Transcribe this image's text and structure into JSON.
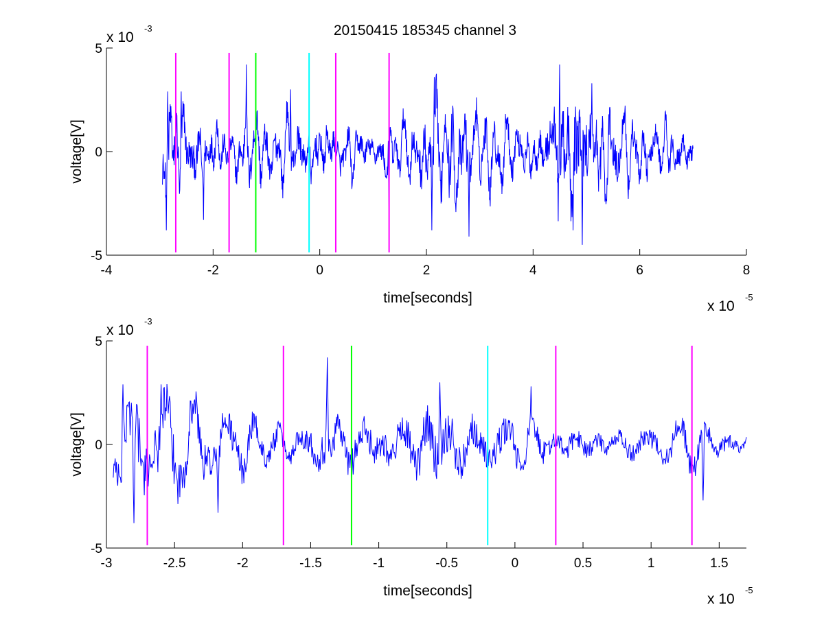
{
  "title": "20150415 185345 channel 3",
  "colors": {
    "signal": "#0000ff",
    "magenta": "#ff00ff",
    "green": "#00ff00",
    "cyan": "#00ffff",
    "axis": "#000000"
  },
  "chart_data": [
    {
      "type": "line",
      "xlabel": "time[seconds]",
      "ylabel": "voltage[V]",
      "x_scale_text": "x 10",
      "x_scale_exp": "-5",
      "y_scale_text": "x 10",
      "y_scale_exp": "-3",
      "x_scale": 1e-05,
      "y_scale": 0.001,
      "xlim": [
        -4,
        8
      ],
      "ylim": [
        -5,
        5
      ],
      "xticks": [
        {
          "value": -4,
          "label": "-4"
        },
        {
          "value": -2,
          "label": "-2"
        },
        {
          "value": 0,
          "label": "0"
        },
        {
          "value": 2,
          "label": "2"
        },
        {
          "value": 4,
          "label": "4"
        },
        {
          "value": 6,
          "label": "6"
        },
        {
          "value": 8,
          "label": "8"
        }
      ],
      "yticks": [
        {
          "value": -5,
          "label": "-5"
        },
        {
          "value": 0,
          "label": "0"
        },
        {
          "value": 5,
          "label": "5"
        }
      ],
      "signal_x_range": [
        -2.95,
        7.0
      ],
      "markers": [
        {
          "x": -2.7,
          "color": "magenta"
        },
        {
          "x": -1.7,
          "color": "magenta"
        },
        {
          "x": -1.2,
          "color": "green"
        },
        {
          "x": -0.2,
          "color": "cyan"
        },
        {
          "x": 0.3,
          "color": "magenta"
        },
        {
          "x": 1.3,
          "color": "magenta"
        }
      ],
      "envelope": [
        {
          "x": -2.95,
          "a": 0.8
        },
        {
          "x": -2.85,
          "a": 2.7
        },
        {
          "x": -2.7,
          "a": 2.4
        },
        {
          "x": -2.5,
          "a": 1.6
        },
        {
          "x": -2.2,
          "a": 1.8
        },
        {
          "x": -2.0,
          "a": 1.4
        },
        {
          "x": -1.6,
          "a": 1.1
        },
        {
          "x": -1.4,
          "a": 1.7
        },
        {
          "x": -1.2,
          "a": 1.7
        },
        {
          "x": -0.6,
          "a": 1.3
        },
        {
          "x": -0.2,
          "a": 1.5
        },
        {
          "x": 0.5,
          "a": 1.2
        },
        {
          "x": 1.0,
          "a": 0.9
        },
        {
          "x": 1.4,
          "a": 1.3
        },
        {
          "x": 1.8,
          "a": 1.7
        },
        {
          "x": 2.3,
          "a": 2.7
        },
        {
          "x": 2.8,
          "a": 2.2
        },
        {
          "x": 3.3,
          "a": 1.5
        },
        {
          "x": 3.8,
          "a": 1.3
        },
        {
          "x": 4.2,
          "a": 1.2
        },
        {
          "x": 4.5,
          "a": 3.3
        },
        {
          "x": 4.9,
          "a": 3.6
        },
        {
          "x": 5.2,
          "a": 2.6
        },
        {
          "x": 5.6,
          "a": 1.7
        },
        {
          "x": 6.0,
          "a": 1.3
        },
        {
          "x": 6.5,
          "a": 1.2
        },
        {
          "x": 7.0,
          "a": 1.0
        }
      ],
      "peaks": [
        {
          "x": -2.88,
          "y": -3.8
        },
        {
          "x": -2.85,
          "y": 2.9
        },
        {
          "x": -2.6,
          "y": 2.9
        },
        {
          "x": -2.18,
          "y": -3.3
        },
        {
          "x": -1.38,
          "y": 4.2
        },
        {
          "x": -0.55,
          "y": 3.0
        },
        {
          "x": 1.3,
          "y": -2.7
        },
        {
          "x": 2.1,
          "y": -3.8
        },
        {
          "x": 2.15,
          "y": 3.6
        },
        {
          "x": 2.8,
          "y": -4.1
        },
        {
          "x": 4.5,
          "y": 4.2
        },
        {
          "x": 4.75,
          "y": -3.8
        },
        {
          "x": 4.92,
          "y": -4.5
        },
        {
          "x": 5.1,
          "y": 3.3
        }
      ]
    },
    {
      "type": "line",
      "xlabel": "time[seconds]",
      "ylabel": "voltage[V]",
      "x_scale_text": "x 10",
      "x_scale_exp": "-5",
      "y_scale_text": "x 10",
      "y_scale_exp": "-3",
      "x_scale": 1e-05,
      "y_scale": 0.001,
      "xlim": [
        -3.0,
        1.7
      ],
      "ylim": [
        -5,
        5
      ],
      "xticks": [
        {
          "value": -3,
          "label": "-3"
        },
        {
          "value": -2.5,
          "label": "-2.5"
        },
        {
          "value": -2,
          "label": "-2"
        },
        {
          "value": -1.5,
          "label": "-1.5"
        },
        {
          "value": -1,
          "label": "-1"
        },
        {
          "value": -0.5,
          "label": "-0.5"
        },
        {
          "value": 0,
          "label": "0"
        },
        {
          "value": 0.5,
          "label": "0.5"
        },
        {
          "value": 1,
          "label": "1"
        },
        {
          "value": 1.5,
          "label": "1.5"
        }
      ],
      "yticks": [
        {
          "value": -5,
          "label": "-5"
        },
        {
          "value": 0,
          "label": "0"
        },
        {
          "value": 5,
          "label": "5"
        }
      ],
      "signal_x_range": [
        -2.95,
        1.7
      ],
      "markers": [
        {
          "x": -2.7,
          "color": "magenta"
        },
        {
          "x": -1.7,
          "color": "magenta"
        },
        {
          "x": -1.2,
          "color": "green"
        },
        {
          "x": -0.2,
          "color": "cyan"
        },
        {
          "x": 0.3,
          "color": "magenta"
        },
        {
          "x": 1.3,
          "color": "magenta"
        }
      ],
      "envelope": [
        {
          "x": -2.95,
          "a": 1.4
        },
        {
          "x": -2.85,
          "a": 2.8
        },
        {
          "x": -2.7,
          "a": 2.7
        },
        {
          "x": -2.5,
          "a": 2.6
        },
        {
          "x": -2.3,
          "a": 2.1
        },
        {
          "x": -2.1,
          "a": 1.9
        },
        {
          "x": -1.9,
          "a": 1.3
        },
        {
          "x": -1.6,
          "a": 1.0
        },
        {
          "x": -1.4,
          "a": 2.0
        },
        {
          "x": -1.2,
          "a": 1.8
        },
        {
          "x": -0.9,
          "a": 1.4
        },
        {
          "x": -0.6,
          "a": 2.4
        },
        {
          "x": -0.3,
          "a": 1.7
        },
        {
          "x": 0.0,
          "a": 1.6
        },
        {
          "x": 0.3,
          "a": 1.1
        },
        {
          "x": 0.6,
          "a": 0.9
        },
        {
          "x": 1.0,
          "a": 1.0
        },
        {
          "x": 1.3,
          "a": 1.4
        },
        {
          "x": 1.5,
          "a": 0.9
        },
        {
          "x": 1.7,
          "a": 0.7
        }
      ],
      "peaks": [
        {
          "x": -2.88,
          "y": 2.9
        },
        {
          "x": -2.8,
          "y": -3.8
        },
        {
          "x": -2.6,
          "y": 2.9
        },
        {
          "x": -2.18,
          "y": -3.3
        },
        {
          "x": -1.38,
          "y": 4.2
        },
        {
          "x": -0.55,
          "y": 3.0
        },
        {
          "x": 0.12,
          "y": 2.8
        },
        {
          "x": 1.38,
          "y": -2.7
        }
      ]
    }
  ]
}
